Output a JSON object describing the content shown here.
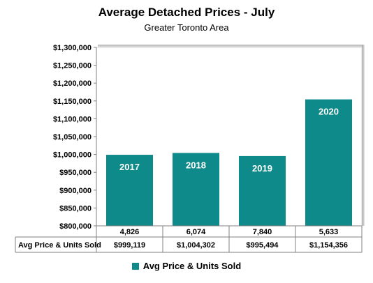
{
  "chart_data": {
    "type": "bar",
    "title": "Average Detached Prices - July",
    "subtitle": "Greater Toronto Area",
    "categories": [
      "2017",
      "2018",
      "2019",
      "2020"
    ],
    "series": [
      {
        "name": "Avg Price & Units Sold",
        "values": [
          999119,
          1004302,
          995494,
          1154356
        ]
      }
    ],
    "units_sold": [
      "4,826",
      "6,074",
      "7,840",
      "5,633"
    ],
    "table_row_label": "Avg Price & Units Sold",
    "table_row_values": [
      "$999,119",
      "$1,004,302",
      "$995,494",
      "$1,154,356"
    ],
    "y_ticks": [
      "$800,000",
      "$850,000",
      "$900,000",
      "$950,000",
      "$1,000,000",
      "$1,050,000",
      "$1,100,000",
      "$1,150,000",
      "$1,200,000",
      "$1,250,000",
      "$1,300,000"
    ],
    "ylim": [
      800000,
      1300000
    ],
    "grid": false,
    "legend_position": "bottom",
    "bar_color": "#0f8a8a"
  }
}
